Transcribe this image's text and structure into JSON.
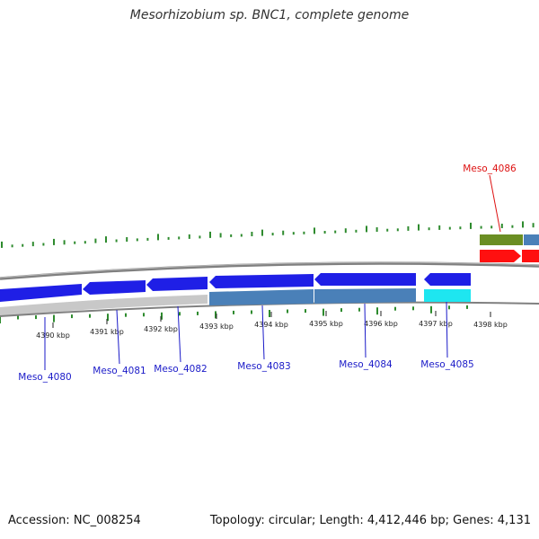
{
  "title": "Mesorhizobium sp. BNC1, complete genome",
  "footer": {
    "accession": "Accession: NC_008254",
    "summary": "Topology: circular; Length: 4,412,446 bp; Genes: 4,131"
  },
  "colors": {
    "gc_skew": "#2e8b2e",
    "backbone": "#808080",
    "blue_gene": "#1f1fe6",
    "steel_gene": "#4a80b8",
    "cyan_gene": "#1ee6f0",
    "gray_gene": "#c8c8c8",
    "red_gene": "#ff1010",
    "olive_gene": "#6b8e23",
    "label_blue": "#1a1ac8",
    "label_red": "#dd1111"
  },
  "kbp_ticks": [
    "4390 kbp",
    "4391 kbp",
    "4392 kbp",
    "4393 kbp",
    "4394 kbp",
    "4395 kbp",
    "4396 kbp",
    "4397 kbp",
    "4398 kbp"
  ],
  "genes": [
    {
      "label": "Meso_4080",
      "color": "blue_gene"
    },
    {
      "label": "Meso_4081",
      "color": "blue_gene"
    },
    {
      "label": "Meso_4082",
      "color": "blue_gene"
    },
    {
      "label": "Meso_4083",
      "color": "blue_gene"
    },
    {
      "label": "Meso_4084",
      "color": "blue_gene"
    },
    {
      "label": "Meso_4085",
      "color": "blue_gene"
    },
    {
      "label": "Meso_4086",
      "color": "red_gene"
    }
  ]
}
